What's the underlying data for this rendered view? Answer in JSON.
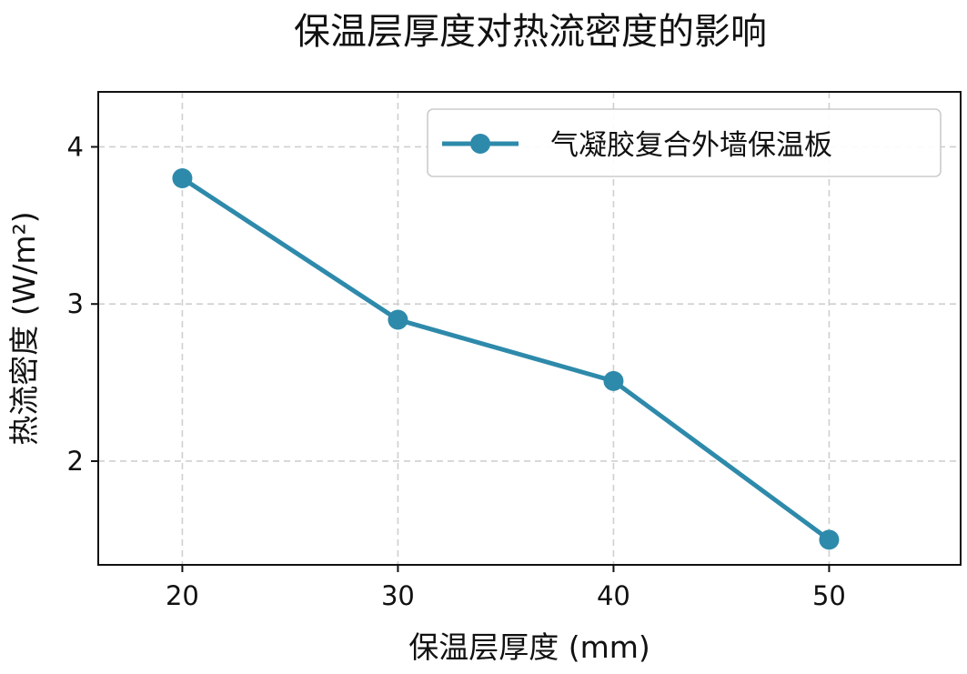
{
  "chart_data": {
    "type": "line",
    "title": "保温层厚度对热流密度的影响",
    "xlabel": "保温层厚度 (mm)",
    "ylabel": "热流密度 (W/m²)",
    "x": [
      20,
      30,
      40,
      50
    ],
    "xticks": [
      20,
      30,
      40,
      50
    ],
    "yticks": [
      2,
      3,
      4
    ],
    "xlim": [
      16.1,
      56.1
    ],
    "ylim": [
      1.34,
      4.35
    ],
    "grid": true,
    "legend_position": "top-right",
    "series": [
      {
        "name": "气凝胶复合外墙保温板",
        "values": [
          3.8,
          2.9,
          2.51,
          1.5
        ],
        "color": "#2e8aab"
      }
    ]
  }
}
